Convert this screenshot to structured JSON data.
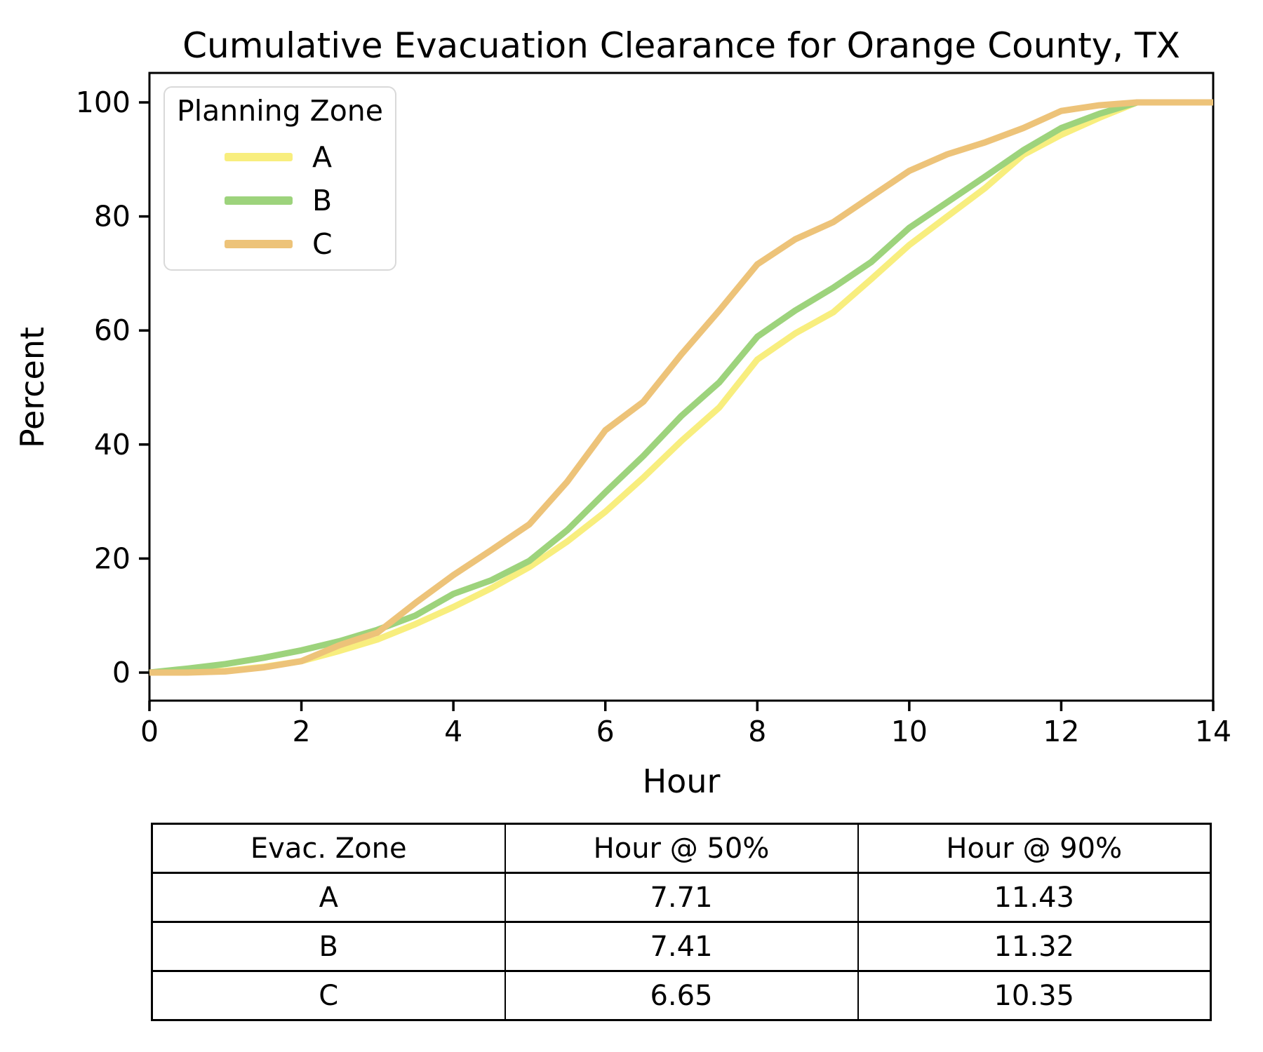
{
  "chart_data": {
    "type": "line",
    "title": "Cumulative Evacuation Clearance for Orange County, TX",
    "xlabel": "Hour",
    "ylabel": "Percent",
    "xlim": [
      0,
      14
    ],
    "ylim": [
      0,
      100
    ],
    "x_ticks": [
      0,
      2,
      4,
      6,
      8,
      10,
      12,
      14
    ],
    "y_ticks": [
      0,
      20,
      40,
      60,
      80,
      100
    ],
    "grid": false,
    "legend": {
      "title": "Planning Zone",
      "position": "upper-left"
    },
    "x": [
      0,
      0.5,
      1,
      1.5,
      2,
      2.5,
      3,
      3.5,
      4,
      4.5,
      5,
      5.5,
      6,
      6.5,
      7,
      7.5,
      8,
      8.5,
      9,
      9.5,
      10,
      10.5,
      11,
      11.5,
      12,
      12.5,
      13,
      13.5,
      14
    ],
    "series": [
      {
        "name": "A",
        "color": "#f8ee7e",
        "values": [
          0,
          0.1,
          0.3,
          1.0,
          2.0,
          3.8,
          5.8,
          8.5,
          11.5,
          14.8,
          18.5,
          23.0,
          28.2,
          34.2,
          40.6,
          46.5,
          54.9,
          59.5,
          63.2,
          69.0,
          75.0,
          80.0,
          85.0,
          90.8,
          94.3,
          97.3,
          100,
          100,
          100
        ]
      },
      {
        "name": "B",
        "color": "#9dd37c",
        "values": [
          0,
          0.7,
          1.5,
          2.6,
          3.9,
          5.5,
          7.5,
          10.0,
          13.8,
          16.2,
          19.6,
          25.0,
          31.6,
          38.0,
          45.0,
          50.9,
          58.9,
          63.5,
          67.5,
          72.0,
          78.0,
          82.5,
          87.0,
          91.6,
          95.5,
          98.0,
          100,
          100,
          100
        ]
      },
      {
        "name": "C",
        "color": "#edc379",
        "values": [
          0,
          0,
          0.2,
          0.9,
          2.0,
          4.8,
          7.0,
          12.2,
          17.1,
          21.5,
          26.0,
          33.5,
          42.5,
          47.5,
          55.8,
          63.5,
          71.6,
          76.0,
          79.0,
          83.5,
          88.0,
          90.9,
          93.0,
          95.5,
          98.5,
          99.5,
          100,
          100,
          100
        ]
      }
    ]
  },
  "summary_table": {
    "headers": [
      "Evac. Zone",
      "Hour @ 50%",
      "Hour @ 90%"
    ],
    "rows": [
      {
        "zone": "A",
        "hour_50": "7.71",
        "hour_90": "11.43"
      },
      {
        "zone": "B",
        "hour_50": "7.41",
        "hour_90": "11.32"
      },
      {
        "zone": "C",
        "hour_50": "6.65",
        "hour_90": "10.35"
      }
    ]
  },
  "style": {
    "axis_color": "#000000",
    "legend_border_color": "#d9d9d9",
    "background": "#ffffff",
    "line_width": 9
  }
}
